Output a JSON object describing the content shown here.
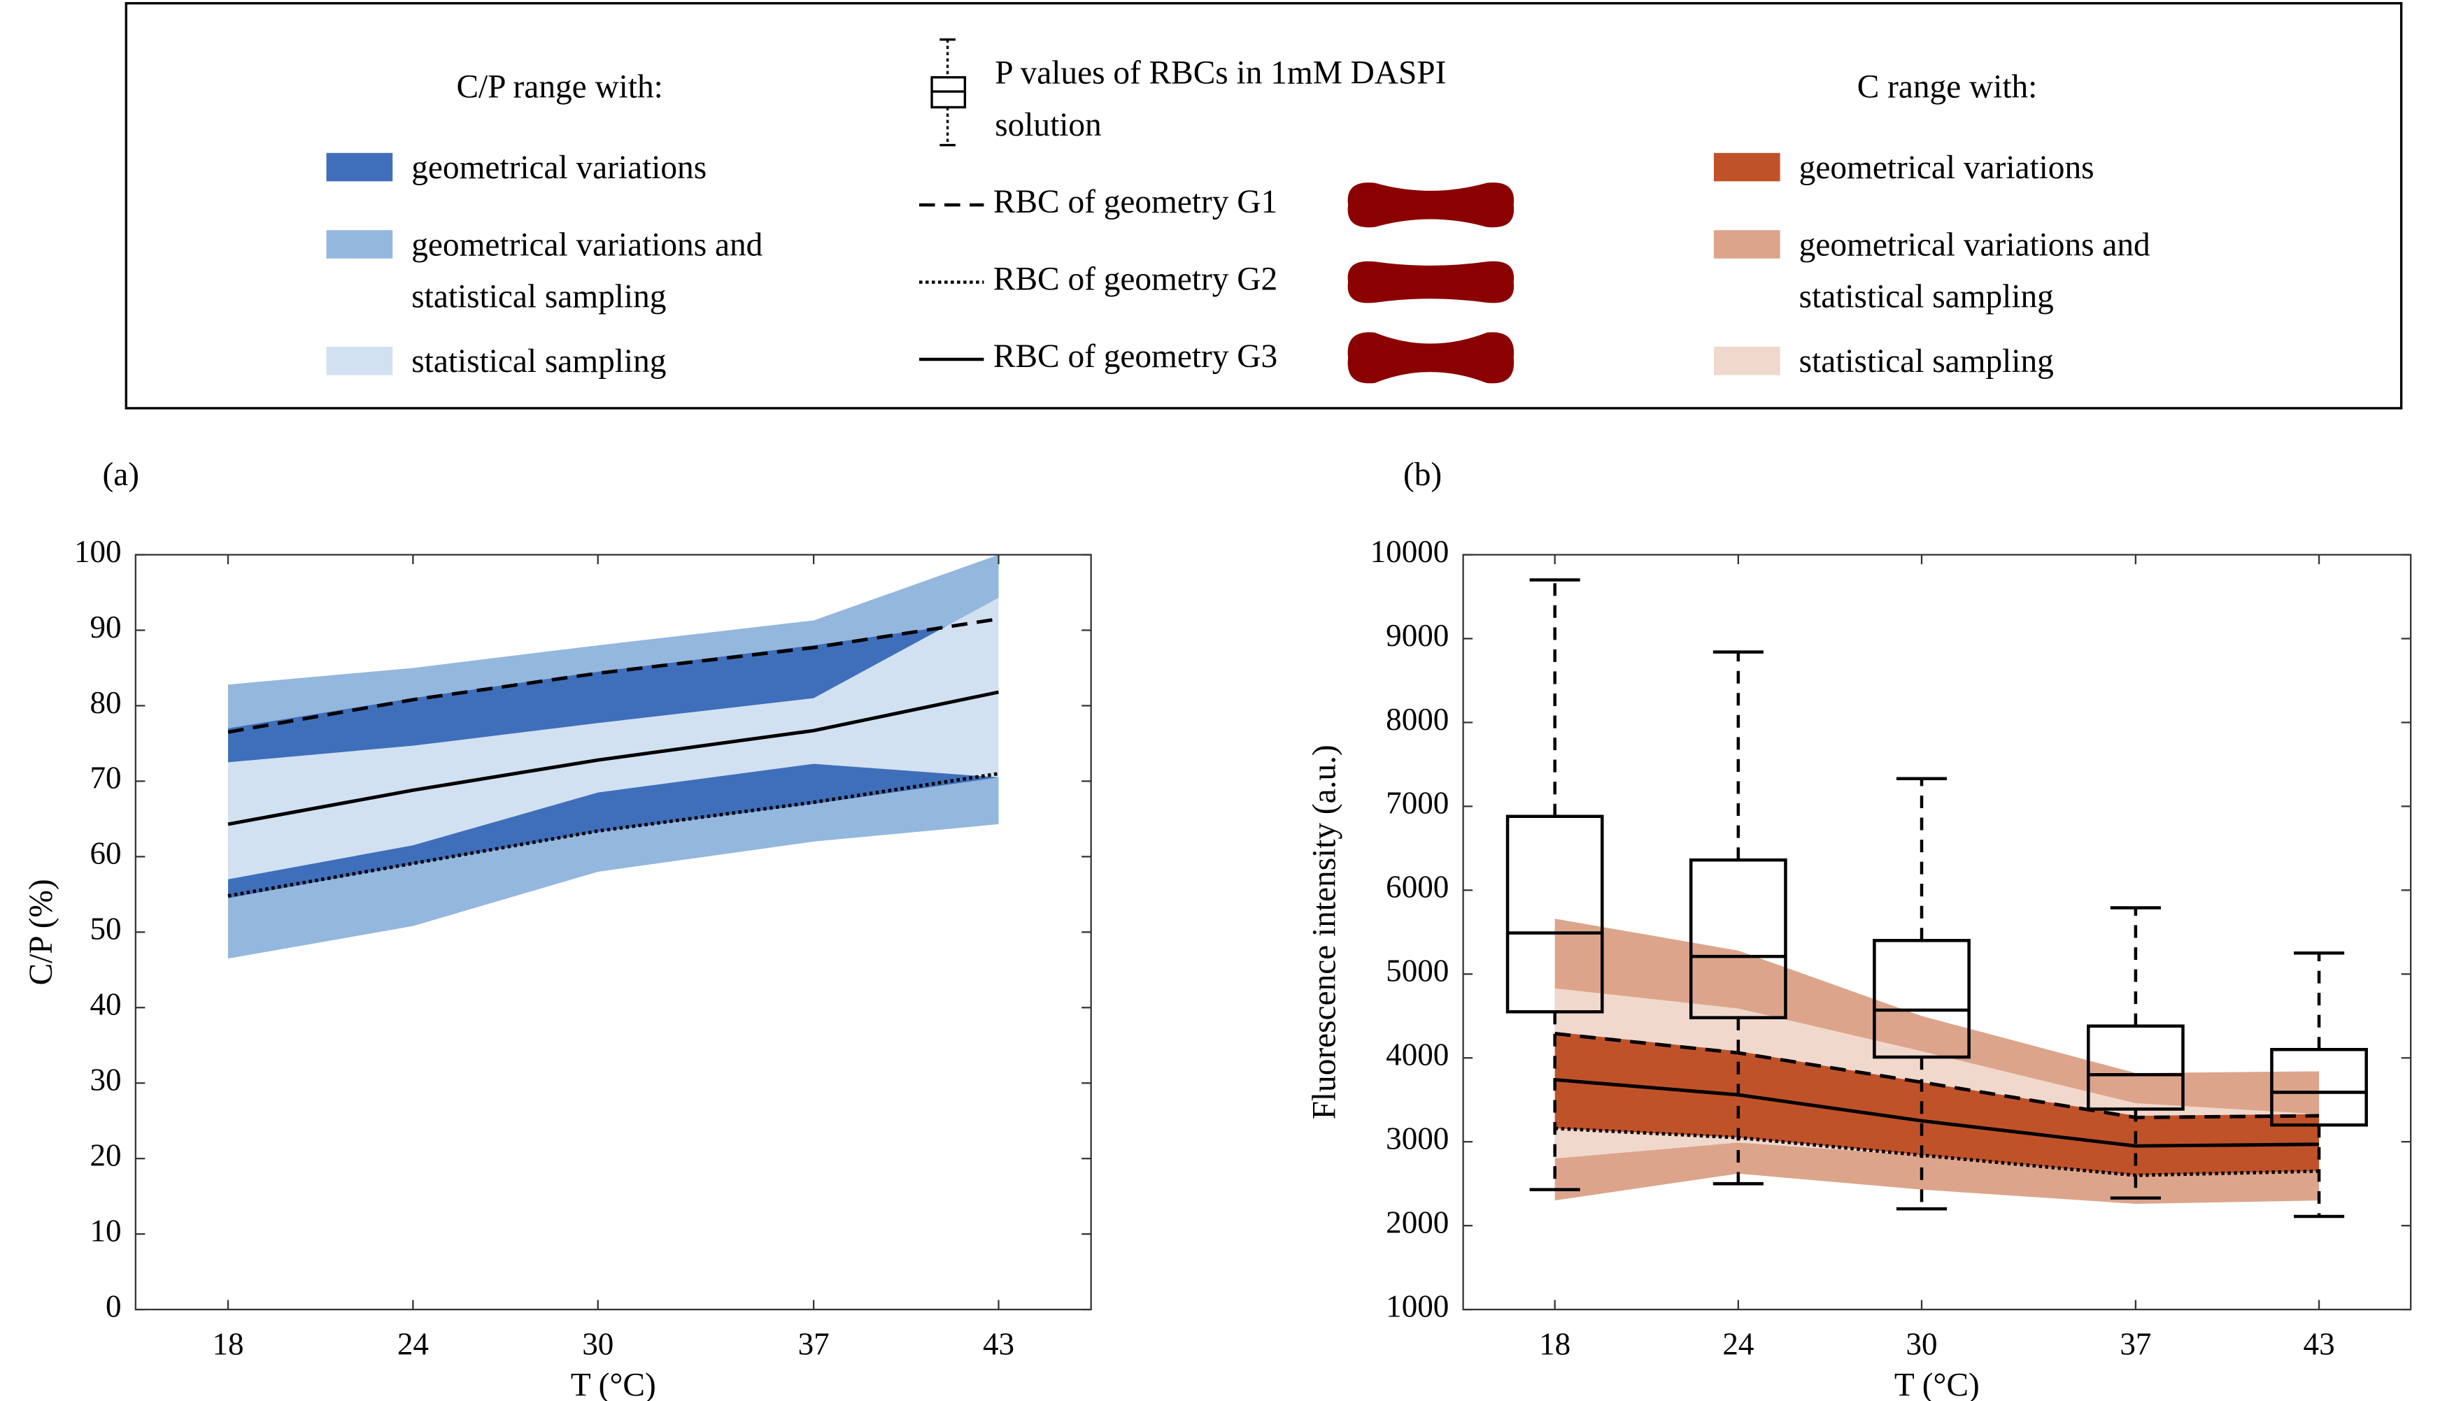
{
  "chart_data": [
    {
      "type": "line",
      "label": "(a)",
      "legend_title": "C/P range with:",
      "xlabel": "T (°C)",
      "ylabel": "C/P (%)",
      "x": [
        18,
        24,
        30,
        37,
        43
      ],
      "xlim": [
        15,
        46
      ],
      "xticks": [
        18,
        24,
        30,
        37,
        43
      ],
      "ylim": [
        0,
        100
      ],
      "yticks": [
        0,
        10,
        20,
        30,
        40,
        50,
        60,
        70,
        80,
        90,
        100
      ],
      "areas": [
        {
          "name": "geometrical variations",
          "color": "#3f6fba",
          "lower": [
            54.5,
            59,
            63.3,
            67,
            70.5
          ],
          "upper": [
            77,
            81,
            84.5,
            88,
            91.5
          ]
        },
        {
          "name": "geometrical variations and statistical sampling",
          "color": "#94b7de",
          "lower": [
            46.5,
            50.8,
            58,
            62,
            64.3
          ],
          "upper": [
            82.8,
            85,
            88,
            91.3,
            100
          ]
        },
        {
          "name": "statistical sampling",
          "color": "#d2e1f1",
          "lower": [
            57,
            61.5,
            68.5,
            72.3,
            70.5
          ],
          "upper": [
            72.5,
            74.7,
            77.7,
            81,
            94.3
          ]
        }
      ],
      "series": [
        {
          "name": "RBC of geometry G1",
          "style": "dashed",
          "color": "#000000",
          "values": [
            76.5,
            80.8,
            84.3,
            87.7,
            91.5
          ]
        },
        {
          "name": "RBC of geometry G2",
          "style": "dotted",
          "color": "#000000",
          "values": [
            54.8,
            59.1,
            63.4,
            67.2,
            71.0
          ]
        },
        {
          "name": "RBC of geometry G3",
          "style": "solid",
          "color": "#000000",
          "values": [
            64.3,
            68.8,
            72.8,
            76.7,
            81.8
          ]
        }
      ]
    },
    {
      "type": "line",
      "label": "(b)",
      "legend_title": "C range with:",
      "xlabel": "T (°C)",
      "ylabel": "Fluorescence intensity (a.u.)",
      "x": [
        18,
        24,
        30,
        37,
        43
      ],
      "xlim": [
        15,
        46
      ],
      "xticks": [
        18,
        24,
        30,
        37,
        43
      ],
      "ylim": [
        1000,
        10000
      ],
      "yticks": [
        1000,
        2000,
        3000,
        4000,
        5000,
        6000,
        7000,
        8000,
        9000,
        10000
      ],
      "areas": [
        {
          "name": "geometrical variations",
          "color": "#c0522a",
          "lower": [
            3160,
            3050,
            2840,
            2600,
            2650
          ],
          "upper": [
            4310,
            4080,
            3710,
            3310,
            3330
          ]
        },
        {
          "name": "geometrical variations and statistical sampling",
          "color": "#dca58b",
          "lower": [
            2300,
            2620,
            2430,
            2260,
            2300
          ],
          "upper": [
            5660,
            5280,
            4500,
            3820,
            3840
          ]
        },
        {
          "name": "statistical sampling",
          "color": "#f1d8cc",
          "lower": [
            2800,
            2990,
            2840,
            2600,
            2650
          ],
          "upper": [
            4830,
            4590,
            4080,
            3460,
            3330
          ]
        }
      ],
      "series": [
        {
          "style": "dashed",
          "color": "#000000",
          "values": [
            4290,
            4060,
            3710,
            3290,
            3310
          ]
        },
        {
          "style": "dotted",
          "color": "#000000",
          "values": [
            3160,
            3050,
            2840,
            2600,
            2650
          ]
        },
        {
          "style": "solid",
          "color": "#000000",
          "values": [
            3740,
            3560,
            3250,
            2950,
            2970
          ]
        }
      ],
      "box_name": "P values of RBCs in 1mM DASPI solution",
      "boxes": [
        {
          "whislo": 2430,
          "q1": 4550,
          "med": 5490,
          "q3": 6880,
          "whishi": 9700
        },
        {
          "whislo": 2500,
          "q1": 4480,
          "med": 5210,
          "q3": 6360,
          "whishi": 8840
        },
        {
          "whislo": 2200,
          "q1": 4010,
          "med": 4570,
          "q3": 5400,
          "whishi": 7330
        },
        {
          "whislo": 2330,
          "q1": 3390,
          "med": 3800,
          "q3": 4380,
          "whishi": 5790
        },
        {
          "whislo": 2110,
          "q1": 3200,
          "med": 3590,
          "q3": 4100,
          "whishi": 5250
        }
      ]
    }
  ]
}
